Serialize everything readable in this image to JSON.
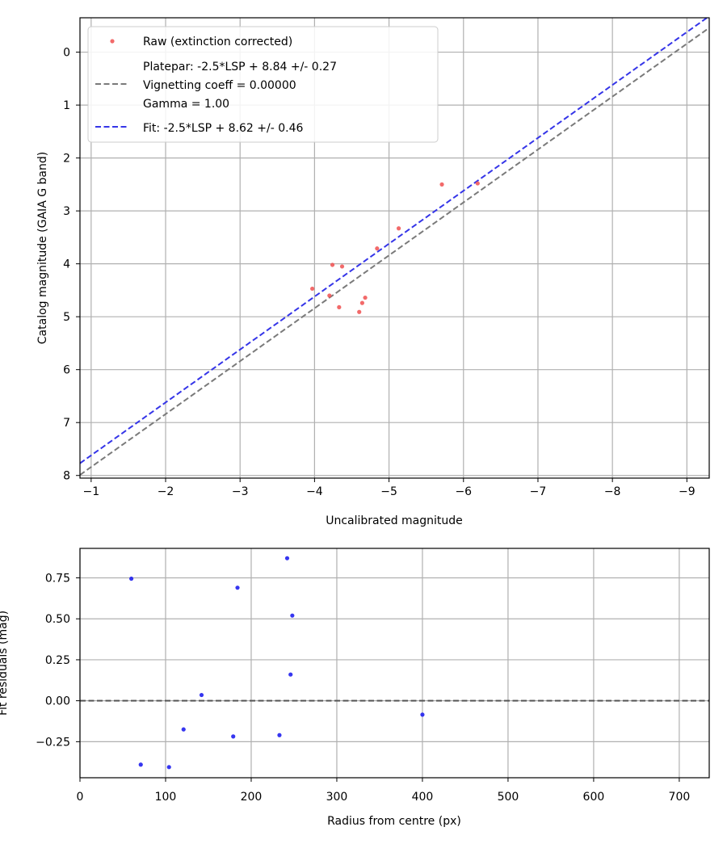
{
  "colors": {
    "raw": "#f05050",
    "fit": "#3535e8",
    "platepar": "#7a7a7a",
    "residual": "#2020ee",
    "zero_line": "#555555",
    "grid": "#b0b0b0",
    "axis": "#000000"
  },
  "chart_data": [
    {
      "type": "scatter",
      "xlabel": "Uncalibrated magnitude",
      "ylabel": "Catalog magnitude (GAIA G band)",
      "xlim": [
        -0.85,
        -9.3
      ],
      "ylim": [
        8.05,
        -0.65
      ],
      "x_inverted": true,
      "y_inverted": true,
      "grid": true,
      "legend_position": "top-left",
      "xticks": [
        -1,
        -2,
        -3,
        -4,
        -5,
        -6,
        -7,
        -8,
        -9
      ],
      "xtick_labels": [
        "−1",
        "−2",
        "−3",
        "−4",
        "−5",
        "−6",
        "−7",
        "−8",
        "−9"
      ],
      "yticks": [
        0,
        1,
        2,
        3,
        4,
        5,
        6,
        7,
        8
      ],
      "ytick_labels": [
        "0",
        "1",
        "2",
        "3",
        "4",
        "5",
        "6",
        "7",
        "8"
      ],
      "legend": [
        {
          "label": "Raw (extinction corrected)",
          "style": "marker"
        },
        {
          "label": "Platepar: -2.5*LSP + 8.84 +/- 0.27",
          "style": "dashed-gray"
        },
        {
          "label": "Vignetting coeff = 0.00000",
          "style": "dashed-gray"
        },
        {
          "label": "Gamma = 1.00",
          "style": "dashed-gray"
        },
        {
          "label": "Fit: -2.5*LSP + 8.62 +/- 0.46",
          "style": "dashed-blue"
        }
      ],
      "series": [
        {
          "name": "Raw (extinction corrected)",
          "type": "scatter",
          "points": [
            {
              "x": -3.97,
              "y": 4.47
            },
            {
              "x": -4.2,
              "y": 4.6
            },
            {
              "x": -4.24,
              "y": 4.02
            },
            {
              "x": -4.33,
              "y": 4.82
            },
            {
              "x": -4.37,
              "y": 4.05
            },
            {
              "x": -4.6,
              "y": 4.91
            },
            {
              "x": -4.64,
              "y": 4.74
            },
            {
              "x": -4.68,
              "y": 4.64
            },
            {
              "x": -4.84,
              "y": 3.71
            },
            {
              "x": -5.13,
              "y": 3.33
            },
            {
              "x": -5.71,
              "y": 2.5
            },
            {
              "x": -6.19,
              "y": 2.48
            }
          ]
        },
        {
          "name": "Platepar",
          "type": "line",
          "style": "dashed",
          "slope": 1.0,
          "intercept": 8.84
        },
        {
          "name": "Fit",
          "type": "line",
          "style": "dashed",
          "slope": 1.0,
          "intercept": 8.62
        }
      ]
    },
    {
      "type": "scatter",
      "xlabel": "Radius from centre (px)",
      "ylabel": "Fit residuals (mag)",
      "xlim": [
        0,
        735
      ],
      "ylim": [
        -0.47,
        0.93
      ],
      "grid": true,
      "xticks": [
        0,
        100,
        200,
        300,
        400,
        500,
        600,
        700
      ],
      "xtick_labels": [
        "0",
        "100",
        "200",
        "300",
        "400",
        "500",
        "600",
        "700"
      ],
      "yticks": [
        -0.25,
        0.0,
        0.25,
        0.5,
        0.75
      ],
      "ytick_labels": [
        "−0.25",
        "0.00",
        "0.25",
        "0.50",
        "0.75"
      ],
      "reference_line": {
        "y": 0.0,
        "style": "dashed"
      },
      "series": [
        {
          "name": "Residuals",
          "points": [
            {
              "x": 60,
              "y": 0.745
            },
            {
              "x": 71,
              "y": -0.39
            },
            {
              "x": 104,
              "y": -0.405
            },
            {
              "x": 121,
              "y": -0.175
            },
            {
              "x": 142,
              "y": 0.035
            },
            {
              "x": 179,
              "y": -0.218
            },
            {
              "x": 184,
              "y": 0.69
            },
            {
              "x": 233,
              "y": -0.21
            },
            {
              "x": 242,
              "y": 0.87
            },
            {
              "x": 246,
              "y": 0.16
            },
            {
              "x": 248,
              "y": 0.52
            },
            {
              "x": 400,
              "y": -0.085
            }
          ]
        }
      ]
    }
  ]
}
